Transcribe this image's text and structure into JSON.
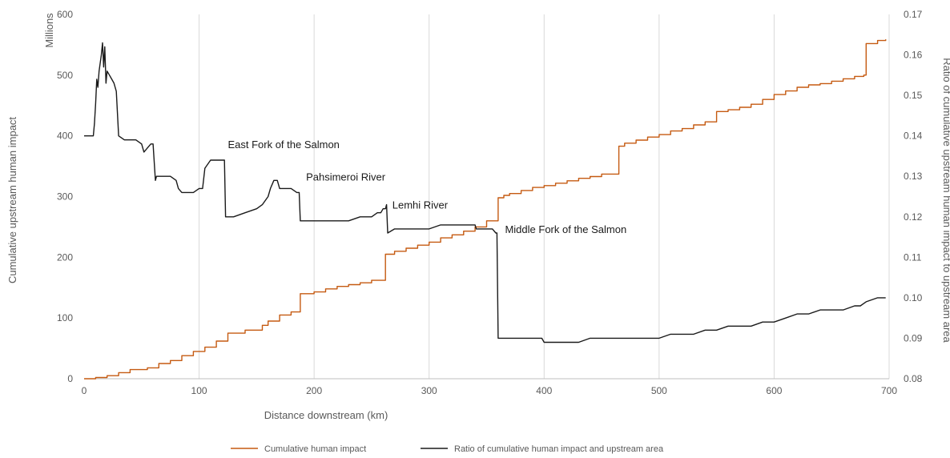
{
  "chart_data": {
    "type": "line",
    "xlabel": "Distance downstream (km)",
    "ylabel": "Cumulative upstream human impact",
    "ylabel2": "Ratio of cumulative upstream human impact to upstream area",
    "y_unit_label": "Millions",
    "xlim": [
      0,
      700
    ],
    "ylim": [
      0,
      600
    ],
    "ylim2": [
      0.08,
      0.17
    ],
    "xticks": [
      "0",
      "100",
      "200",
      "300",
      "400",
      "500",
      "600",
      "700"
    ],
    "yticks": [
      "0",
      "100",
      "200",
      "300",
      "400",
      "500",
      "600"
    ],
    "yticks2": [
      "0.08",
      "0.09",
      "0.10",
      "0.11",
      "0.12",
      "0.13",
      "0.14",
      "0.15",
      "0.16",
      "0.17"
    ],
    "grid": "vertical",
    "legend_position": "bottom",
    "colors": {
      "impact": "#c55a11",
      "ratio": "#1a1a1a"
    },
    "annotations": [
      {
        "text": "East Fork of the Salmon",
        "x": 125,
        "y": 0.137
      },
      {
        "text": "Pahsimeroi River",
        "x": 193,
        "y": 0.129
      },
      {
        "text": "Lemhi River",
        "x": 268,
        "y": 0.122
      },
      {
        "text": "Middle Fork of the Salmon",
        "x": 366,
        "y": 0.116
      }
    ],
    "series": [
      {
        "name": "Cumulative human impact",
        "axis": "left",
        "step": true,
        "x": [
          0,
          10,
          20,
          30,
          40,
          55,
          65,
          75,
          85,
          95,
          105,
          115,
          125,
          140,
          155,
          160,
          170,
          180,
          188,
          200,
          210,
          220,
          230,
          240,
          250,
          262,
          270,
          280,
          290,
          300,
          310,
          320,
          330,
          340,
          350,
          360,
          365,
          370,
          380,
          390,
          400,
          410,
          420,
          430,
          440,
          450,
          465,
          470,
          480,
          490,
          500,
          510,
          520,
          530,
          540,
          550,
          560,
          570,
          580,
          590,
          600,
          610,
          620,
          630,
          640,
          650,
          660,
          670,
          678,
          680,
          690,
          697
        ],
        "y": [
          0,
          2,
          5,
          10,
          15,
          18,
          25,
          30,
          38,
          45,
          52,
          62,
          75,
          80,
          88,
          95,
          105,
          110,
          140,
          143,
          148,
          152,
          155,
          158,
          162,
          205,
          210,
          215,
          220,
          225,
          232,
          237,
          243,
          250,
          260,
          298,
          302,
          305,
          310,
          315,
          318,
          322,
          326,
          330,
          333,
          337,
          383,
          388,
          393,
          398,
          402,
          408,
          412,
          418,
          423,
          440,
          443,
          447,
          452,
          460,
          468,
          474,
          480,
          484,
          486,
          490,
          494,
          498,
          500,
          552,
          557,
          559
        ]
      },
      {
        "name": "Ratio of cumulative human impact and upstream area",
        "axis": "right",
        "step": false,
        "x": [
          0,
          8,
          9,
          10,
          11,
          12,
          13,
          14,
          15,
          16,
          17,
          18,
          19,
          20,
          22,
          24,
          26,
          28,
          30,
          35,
          40,
          45,
          50,
          52,
          55,
          58,
          60,
          62,
          63,
          65,
          70,
          75,
          80,
          82,
          85,
          90,
          95,
          100,
          103,
          105,
          110,
          115,
          120,
          122,
          123,
          130,
          140,
          150,
          155,
          160,
          162,
          165,
          168,
          170,
          175,
          180,
          185,
          187,
          188,
          190,
          200,
          210,
          220,
          230,
          240,
          250,
          255,
          258,
          260,
          262,
          263,
          264,
          270,
          280,
          290,
          300,
          310,
          320,
          330,
          340,
          341,
          345,
          350,
          355,
          358,
          359,
          360,
          370,
          380,
          390,
          398,
          400,
          410,
          420,
          430,
          440,
          450,
          460,
          470,
          480,
          490,
          500,
          510,
          520,
          530,
          540,
          550,
          560,
          570,
          580,
          590,
          600,
          610,
          620,
          630,
          640,
          650,
          660,
          670,
          675,
          680,
          690,
          697
        ],
        "y": [
          0.14,
          0.14,
          0.143,
          0.148,
          0.154,
          0.152,
          0.156,
          0.158,
          0.16,
          0.163,
          0.157,
          0.162,
          0.153,
          0.156,
          0.155,
          0.154,
          0.153,
          0.151,
          0.14,
          0.139,
          0.139,
          0.139,
          0.138,
          0.136,
          0.137,
          0.138,
          0.138,
          0.129,
          0.13,
          0.13,
          0.13,
          0.13,
          0.129,
          0.127,
          0.126,
          0.126,
          0.126,
          0.127,
          0.127,
          0.132,
          0.134,
          0.134,
          0.134,
          0.134,
          0.12,
          0.12,
          0.121,
          0.122,
          0.123,
          0.125,
          0.127,
          0.129,
          0.129,
          0.127,
          0.127,
          0.127,
          0.126,
          0.126,
          0.119,
          0.119,
          0.119,
          0.119,
          0.119,
          0.119,
          0.12,
          0.12,
          0.121,
          0.121,
          0.122,
          0.122,
          0.123,
          0.116,
          0.117,
          0.117,
          0.117,
          0.117,
          0.118,
          0.118,
          0.118,
          0.118,
          0.117,
          0.117,
          0.117,
          0.117,
          0.116,
          0.116,
          0.09,
          0.09,
          0.09,
          0.09,
          0.09,
          0.089,
          0.089,
          0.089,
          0.089,
          0.09,
          0.09,
          0.09,
          0.09,
          0.09,
          0.09,
          0.09,
          0.091,
          0.091,
          0.091,
          0.092,
          0.092,
          0.093,
          0.093,
          0.093,
          0.094,
          0.094,
          0.095,
          0.096,
          0.096,
          0.097,
          0.097,
          0.097,
          0.098,
          0.098,
          0.099,
          0.1,
          0.1
        ]
      }
    ]
  }
}
